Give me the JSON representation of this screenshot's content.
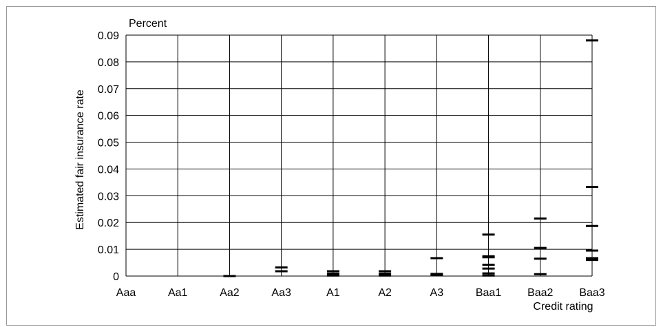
{
  "chart_data": {
    "type": "scatter",
    "title": "",
    "y_unit_label": "Percent",
    "ylabel": "Estimated fair insurance rate",
    "xlabel": "Credit rating",
    "ylim": [
      0,
      0.09
    ],
    "y_ticks": [
      "0",
      "0.01",
      "0.02",
      "0.03",
      "0.04",
      "0.05",
      "0.06",
      "0.07",
      "0.08",
      "0.09"
    ],
    "categories": [
      "Aaa",
      "Aa1",
      "Aa2",
      "Aa3",
      "A1",
      "A2",
      "A3",
      "Baa1",
      "Baa2",
      "Baa3"
    ],
    "grid": true,
    "legend": "none",
    "marker": "horizontal-dash",
    "points": [
      {
        "x": "Aa2",
        "y": 0.0
      },
      {
        "x": "Aa3",
        "y": 0.0032
      },
      {
        "x": "Aa3",
        "y": 0.0018
      },
      {
        "x": "A1",
        "y": 0.0018
      },
      {
        "x": "A1",
        "y": 0.0009
      },
      {
        "x": "A1",
        "y": 0.0002
      },
      {
        "x": "A2",
        "y": 0.0018
      },
      {
        "x": "A2",
        "y": 0.0009
      },
      {
        "x": "A2",
        "y": 0.0002
      },
      {
        "x": "A3",
        "y": 0.0067
      },
      {
        "x": "A3",
        "y": 0.0008
      },
      {
        "x": "A3",
        "y": 0.0003
      },
      {
        "x": "Baa1",
        "y": 0.0155
      },
      {
        "x": "Baa1",
        "y": 0.0074
      },
      {
        "x": "Baa1",
        "y": 0.007
      },
      {
        "x": "Baa1",
        "y": 0.0042
      },
      {
        "x": "Baa1",
        "y": 0.0028
      },
      {
        "x": "Baa1",
        "y": 0.001
      },
      {
        "x": "Baa1",
        "y": 0.0002
      },
      {
        "x": "Baa2",
        "y": 0.0215
      },
      {
        "x": "Baa2",
        "y": 0.0105
      },
      {
        "x": "Baa2",
        "y": 0.0065
      },
      {
        "x": "Baa2",
        "y": 0.0007
      },
      {
        "x": "Baa3",
        "y": 0.088
      },
      {
        "x": "Baa3",
        "y": 0.0333
      },
      {
        "x": "Baa3",
        "y": 0.0187
      },
      {
        "x": "Baa3",
        "y": 0.0095
      },
      {
        "x": "Baa3",
        "y": 0.0067
      },
      {
        "x": "Baa3",
        "y": 0.006
      }
    ]
  }
}
